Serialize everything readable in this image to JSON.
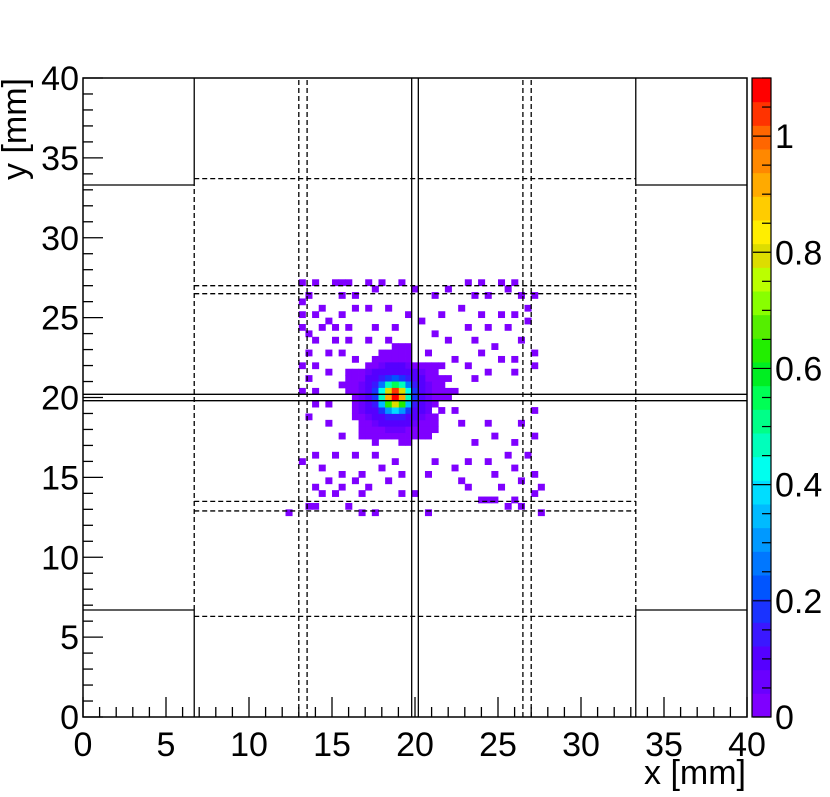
{
  "chart_data": {
    "type": "heatmap",
    "title": "",
    "xlabel": "x [mm]",
    "ylabel": "y [mm]",
    "xlim": [
      0,
      40
    ],
    "ylim": [
      0,
      40
    ],
    "xticks": [
      "0",
      "5",
      "10",
      "15",
      "20",
      "25",
      "30",
      "35",
      "40"
    ],
    "yticks": [
      "0",
      "5",
      "10",
      "15",
      "20",
      "25",
      "30",
      "35",
      "40"
    ],
    "colorbar": {
      "range": [
        0,
        1.1
      ],
      "ticks": [
        "0",
        "0.2",
        "0.4",
        "0.6",
        "0.8",
        "1"
      ],
      "palette": [
        "#7f00ff",
        "#6a00ff",
        "#5500ff",
        "#3a18ff",
        "#1a33ff",
        "#0055ff",
        "#0077ff",
        "#0099ff",
        "#00bbff",
        "#00ddff",
        "#00ffee",
        "#00ffbb",
        "#00ff88",
        "#00ff55",
        "#00ee22",
        "#22ee00",
        "#55ee00",
        "#88ff00",
        "#bbff00",
        "#dddd00",
        "#ffee00",
        "#ffcc00",
        "#ffaa00",
        "#ff8800",
        "#ff6600",
        "#ff3300",
        "#ff0000"
      ]
    },
    "bin_size_mm": 0.4,
    "hotspot": {
      "x": 18.8,
      "y": 20.1,
      "peak": 1.1
    },
    "hits": [
      [
        13.3,
        27.1
      ],
      [
        14.1,
        27.1
      ],
      [
        15.3,
        27.1
      ],
      [
        15.7,
        27.1
      ],
      [
        16.1,
        27.1
      ],
      [
        17.3,
        27.1
      ],
      [
        18.1,
        27.1
      ],
      [
        19.0,
        27.3
      ],
      [
        20.1,
        26.7
      ],
      [
        21.3,
        26.3
      ],
      [
        23.3,
        27.1
      ],
      [
        24.1,
        27.1
      ],
      [
        25.3,
        27.1
      ],
      [
        26.1,
        27.1
      ],
      [
        26.5,
        26.3
      ],
      [
        27.3,
        26.3
      ],
      [
        13.3,
        25.9
      ],
      [
        13.7,
        26.3
      ],
      [
        14.5,
        25.5
      ],
      [
        15.7,
        26.3
      ],
      [
        16.5,
        26.3
      ],
      [
        17.7,
        26.7
      ],
      [
        22.1,
        26.7
      ],
      [
        23.7,
        26.3
      ],
      [
        24.5,
        26.3
      ],
      [
        25.7,
        26.7
      ],
      [
        13.3,
        25.1
      ],
      [
        14.1,
        25.1
      ],
      [
        14.9,
        24.7
      ],
      [
        15.7,
        25.1
      ],
      [
        16.5,
        25.5
      ],
      [
        17.3,
        25.5
      ],
      [
        18.5,
        25.5
      ],
      [
        19.7,
        25.1
      ],
      [
        22.9,
        25.5
      ],
      [
        24.1,
        25.1
      ],
      [
        25.3,
        25.1
      ],
      [
        26.1,
        25.1
      ],
      [
        26.9,
        25.5
      ],
      [
        13.3,
        24.3
      ],
      [
        13.7,
        23.9
      ],
      [
        14.5,
        24.3
      ],
      [
        15.3,
        24.3
      ],
      [
        16.1,
        24.3
      ],
      [
        17.7,
        24.3
      ],
      [
        18.9,
        24.3
      ],
      [
        20.5,
        24.7
      ],
      [
        21.7,
        25.1
      ],
      [
        23.3,
        24.3
      ],
      [
        24.5,
        24.3
      ],
      [
        25.7,
        24.3
      ],
      [
        26.9,
        24.7
      ],
      [
        14.1,
        23.5
      ],
      [
        15.3,
        23.5
      ],
      [
        16.1,
        23.5
      ],
      [
        17.3,
        23.5
      ],
      [
        18.5,
        23.5
      ],
      [
        19.3,
        23.1
      ],
      [
        21.3,
        23.9
      ],
      [
        22.1,
        23.5
      ],
      [
        23.7,
        23.5
      ],
      [
        24.9,
        23.1
      ],
      [
        26.5,
        23.5
      ],
      [
        27.3,
        22.7
      ],
      [
        13.7,
        22.7
      ],
      [
        14.9,
        22.7
      ],
      [
        15.7,
        22.7
      ],
      [
        16.5,
        22.3
      ],
      [
        20.9,
        22.7
      ],
      [
        22.5,
        22.3
      ],
      [
        24.1,
        22.7
      ],
      [
        25.3,
        22.3
      ],
      [
        26.1,
        22.3
      ],
      [
        27.3,
        21.9
      ],
      [
        13.3,
        21.9
      ],
      [
        14.1,
        21.9
      ],
      [
        21.7,
        21.9
      ],
      [
        23.3,
        21.9
      ],
      [
        24.5,
        21.5
      ],
      [
        26.1,
        21.5
      ],
      [
        13.7,
        21.1
      ],
      [
        14.9,
        21.5
      ],
      [
        22.1,
        21.1
      ],
      [
        23.7,
        21.1
      ],
      [
        13.1,
        20.3
      ],
      [
        14.1,
        20.3
      ],
      [
        22.5,
        20.3
      ],
      [
        21.9,
        19.9
      ],
      [
        13.9,
        19.5
      ],
      [
        14.7,
        19.5
      ],
      [
        21.7,
        19.1
      ],
      [
        22.5,
        19.1
      ],
      [
        27.3,
        19.1
      ],
      [
        13.7,
        18.7
      ],
      [
        14.9,
        18.3
      ],
      [
        21.3,
        18.3
      ],
      [
        22.9,
        18.3
      ],
      [
        24.5,
        18.3
      ],
      [
        26.3,
        18.3
      ],
      [
        15.7,
        17.5
      ],
      [
        17.3,
        17.5
      ],
      [
        18.5,
        17.5
      ],
      [
        19.3,
        17.1
      ],
      [
        23.5,
        17.1
      ],
      [
        24.9,
        17.5
      ],
      [
        26.1,
        17.1
      ],
      [
        27.3,
        17.5
      ],
      [
        13.3,
        15.9
      ],
      [
        14.1,
        16.3
      ],
      [
        15.3,
        16.3
      ],
      [
        16.5,
        16.3
      ],
      [
        17.7,
        16.3
      ],
      [
        18.9,
        15.9
      ],
      [
        21.3,
        15.9
      ],
      [
        23.3,
        15.9
      ],
      [
        24.5,
        15.9
      ],
      [
        25.7,
        16.3
      ],
      [
        26.9,
        16.3
      ],
      [
        14.5,
        15.5
      ],
      [
        15.7,
        15.1
      ],
      [
        16.9,
        15.1
      ],
      [
        18.1,
        15.5
      ],
      [
        19.3,
        15.1
      ],
      [
        20.9,
        15.1
      ],
      [
        22.5,
        15.5
      ],
      [
        24.9,
        15.1
      ],
      [
        26.1,
        15.5
      ],
      [
        27.3,
        15.1
      ],
      [
        14.1,
        14.3
      ],
      [
        14.9,
        14.7
      ],
      [
        15.7,
        14.3
      ],
      [
        16.5,
        14.7
      ],
      [
        17.3,
        14.3
      ],
      [
        18.5,
        14.7
      ],
      [
        22.9,
        14.7
      ],
      [
        23.3,
        14.3
      ],
      [
        25.3,
        14.3
      ],
      [
        26.5,
        14.7
      ],
      [
        27.7,
        14.3
      ],
      [
        14.5,
        13.9
      ],
      [
        15.3,
        13.9
      ],
      [
        16.9,
        13.9
      ],
      [
        19.3,
        13.9
      ],
      [
        20.1,
        13.9
      ],
      [
        24.1,
        13.5
      ],
      [
        24.5,
        13.5
      ],
      [
        24.9,
        13.5
      ],
      [
        25.7,
        13.1
      ],
      [
        26.1,
        13.5
      ],
      [
        26.5,
        13.1
      ],
      [
        27.1,
        13.9
      ],
      [
        12.5,
        12.7
      ],
      [
        13.7,
        13.1
      ],
      [
        14.1,
        13.1
      ],
      [
        16.1,
        13.1
      ],
      [
        16.9,
        12.7
      ],
      [
        17.7,
        12.7
      ],
      [
        20.9,
        12.7
      ],
      [
        27.7,
        12.7
      ]
    ]
  }
}
